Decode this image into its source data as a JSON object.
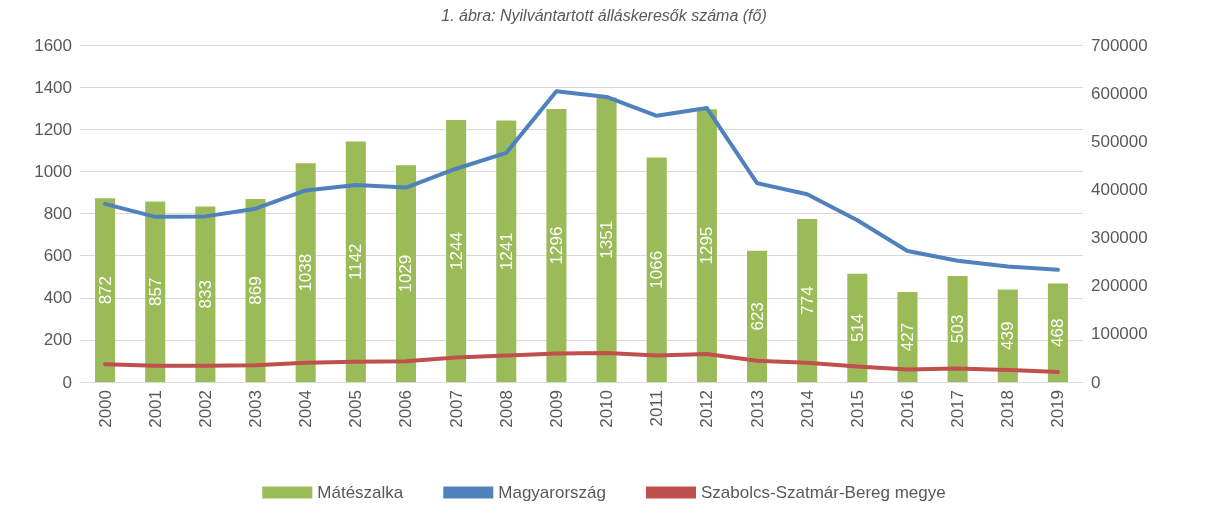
{
  "chart_data": {
    "type": "bar",
    "title": "1. ábra: Nyilvántartott álláskeresők száma (fő)",
    "categories": [
      "2000",
      "2001",
      "2002",
      "2003",
      "2004",
      "2005",
      "2006",
      "2007",
      "2008",
      "2009",
      "2010",
      "2011",
      "2012",
      "2013",
      "2014",
      "2015",
      "2016",
      "2017",
      "2018",
      "2019"
    ],
    "series": [
      {
        "name": "Mátészalka",
        "color": "#9bbb59",
        "data_labels": true,
        "values": [
          872,
          857,
          833,
          869,
          1038,
          1142,
          1029,
          1244,
          1241,
          1296,
          1351,
          1066,
          1295,
          623,
          774,
          514,
          427,
          503,
          439,
          468
        ]
      },
      {
        "name": "Magyarország",
        "type": "line",
        "axis": "y2",
        "color": "#4f81bd",
        "values": [
          370000,
          343000,
          344000,
          360000,
          398000,
          409000,
          404000,
          443000,
          476000,
          604000,
          592000,
          553000,
          569000,
          413000,
          390000,
          336000,
          272000,
          252000,
          240000,
          233000
        ]
      },
      {
        "name": "Szabolcs-Szatmár-Bereg megye",
        "type": "line",
        "axis": "y2",
        "color": "#c0504d",
        "values": [
          37000,
          34000,
          34000,
          35000,
          40000,
          42000,
          43000,
          51000,
          55000,
          59000,
          60000,
          55000,
          58000,
          44000,
          40000,
          32000,
          26000,
          28000,
          25000,
          21000
        ]
      }
    ],
    "ylim": [
      0,
      1600
    ],
    "yticks": [
      0,
      200,
      400,
      600,
      800,
      1000,
      1200,
      1400,
      1600
    ],
    "y2lim": [
      0,
      700000
    ],
    "y2ticks": [
      0,
      100000,
      200000,
      300000,
      400000,
      500000,
      600000,
      700000
    ],
    "grid": "y",
    "legend": "bottom",
    "marker": "none",
    "line_style": "solid"
  }
}
